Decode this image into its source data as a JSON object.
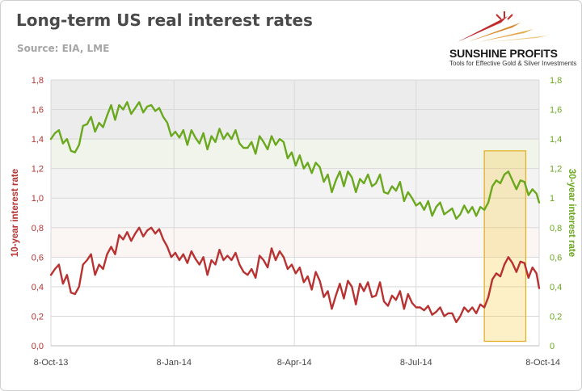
{
  "header": {
    "title": "Long-term US real interest rates",
    "subtitle": "Source: EIA, LME"
  },
  "logo": {
    "brand": "SUNSHINE PROFITS",
    "tagline": "Tools for Effective Gold & Silver Investments"
  },
  "colors": {
    "series_10y": "#b83232",
    "series_30y": "#6aa81e",
    "highlight": "#f7c531"
  },
  "chart_data": {
    "type": "line",
    "title": "Long-term US real interest rates",
    "x_dates": [
      "2013-10-08",
      "2013-10-11",
      "2013-10-14",
      "2013-10-17",
      "2013-10-20",
      "2013-10-23",
      "2013-10-26",
      "2013-10-29",
      "2013-11-01",
      "2013-11-04",
      "2013-11-07",
      "2013-11-10",
      "2013-11-13",
      "2013-11-16",
      "2013-11-19",
      "2013-11-22",
      "2013-11-25",
      "2013-11-28",
      "2013-12-01",
      "2013-12-04",
      "2013-12-07",
      "2013-12-10",
      "2013-12-13",
      "2013-12-16",
      "2013-12-19",
      "2013-12-22",
      "2013-12-25",
      "2013-12-28",
      "2013-12-31",
      "2014-01-03",
      "2014-01-06",
      "2014-01-09",
      "2014-01-12",
      "2014-01-15",
      "2014-01-18",
      "2014-01-21",
      "2014-01-24",
      "2014-01-27",
      "2014-01-30",
      "2014-02-02",
      "2014-02-05",
      "2014-02-08",
      "2014-02-11",
      "2014-02-14",
      "2014-02-17",
      "2014-02-20",
      "2014-02-23",
      "2014-02-26",
      "2014-03-01",
      "2014-03-04",
      "2014-03-07",
      "2014-03-10",
      "2014-03-13",
      "2014-03-16",
      "2014-03-19",
      "2014-03-22",
      "2014-03-25",
      "2014-03-28",
      "2014-03-31",
      "2014-04-03",
      "2014-04-06",
      "2014-04-09",
      "2014-04-12",
      "2014-04-15",
      "2014-04-18",
      "2014-04-21",
      "2014-04-24",
      "2014-04-27",
      "2014-04-30",
      "2014-05-03",
      "2014-05-06",
      "2014-05-09",
      "2014-05-12",
      "2014-05-15",
      "2014-05-18",
      "2014-05-21",
      "2014-05-24",
      "2014-05-27",
      "2014-05-30",
      "2014-06-02",
      "2014-06-05",
      "2014-06-08",
      "2014-06-11",
      "2014-06-14",
      "2014-06-17",
      "2014-06-20",
      "2014-06-23",
      "2014-06-26",
      "2014-06-29",
      "2014-07-02",
      "2014-07-05",
      "2014-07-08",
      "2014-07-11",
      "2014-07-14",
      "2014-07-17",
      "2014-07-20",
      "2014-07-23",
      "2014-07-26",
      "2014-07-29",
      "2014-08-01",
      "2014-08-04",
      "2014-08-07",
      "2014-08-10",
      "2014-08-13",
      "2014-08-16",
      "2014-08-19",
      "2014-08-22",
      "2014-08-25",
      "2014-08-28",
      "2014-08-31",
      "2014-09-03",
      "2014-09-06",
      "2014-09-09",
      "2014-09-12",
      "2014-09-15",
      "2014-09-18",
      "2014-09-21",
      "2014-09-24",
      "2014-09-27",
      "2014-09-30",
      "2014-10-03",
      "2014-10-06",
      "2014-10-08"
    ],
    "series": [
      {
        "name": "10-year interest rate",
        "axis": "left",
        "values": [
          0.48,
          0.52,
          0.55,
          0.42,
          0.48,
          0.36,
          0.35,
          0.4,
          0.55,
          0.58,
          0.62,
          0.48,
          0.55,
          0.52,
          0.62,
          0.67,
          0.62,
          0.75,
          0.72,
          0.77,
          0.71,
          0.76,
          0.8,
          0.74,
          0.78,
          0.8,
          0.76,
          0.79,
          0.72,
          0.67,
          0.6,
          0.63,
          0.58,
          0.62,
          0.56,
          0.64,
          0.59,
          0.55,
          0.6,
          0.48,
          0.58,
          0.55,
          0.65,
          0.58,
          0.61,
          0.58,
          0.63,
          0.55,
          0.5,
          0.48,
          0.52,
          0.46,
          0.61,
          0.58,
          0.53,
          0.66,
          0.58,
          0.64,
          0.6,
          0.52,
          0.55,
          0.49,
          0.53,
          0.43,
          0.47,
          0.38,
          0.5,
          0.44,
          0.33,
          0.37,
          0.25,
          0.34,
          0.42,
          0.32,
          0.44,
          0.4,
          0.28,
          0.42,
          0.37,
          0.43,
          0.33,
          0.34,
          0.43,
          0.3,
          0.27,
          0.34,
          0.31,
          0.37,
          0.25,
          0.35,
          0.29,
          0.26,
          0.26,
          0.24,
          0.27,
          0.21,
          0.23,
          0.26,
          0.2,
          0.22,
          0.22,
          0.16,
          0.2,
          0.26,
          0.23,
          0.26,
          0.22,
          0.28,
          0.26,
          0.33,
          0.45,
          0.49,
          0.47,
          0.55,
          0.6,
          0.56,
          0.5,
          0.57,
          0.56,
          0.46,
          0.53,
          0.49,
          0.39
        ]
      },
      {
        "name": "30-year interest rate",
        "axis": "right",
        "values": [
          1.4,
          1.44,
          1.46,
          1.37,
          1.4,
          1.32,
          1.31,
          1.36,
          1.49,
          1.5,
          1.55,
          1.45,
          1.51,
          1.48,
          1.56,
          1.63,
          1.53,
          1.63,
          1.6,
          1.65,
          1.57,
          1.61,
          1.65,
          1.58,
          1.62,
          1.63,
          1.59,
          1.61,
          1.55,
          1.51,
          1.42,
          1.45,
          1.41,
          1.46,
          1.36,
          1.46,
          1.41,
          1.37,
          1.44,
          1.33,
          1.42,
          1.38,
          1.47,
          1.4,
          1.44,
          1.4,
          1.46,
          1.37,
          1.34,
          1.34,
          1.38,
          1.3,
          1.42,
          1.38,
          1.33,
          1.42,
          1.36,
          1.4,
          1.38,
          1.27,
          1.31,
          1.22,
          1.29,
          1.2,
          1.24,
          1.17,
          1.24,
          1.21,
          1.11,
          1.16,
          1.04,
          1.12,
          1.18,
          1.08,
          1.18,
          1.14,
          1.04,
          1.13,
          1.1,
          1.16,
          1.08,
          1.1,
          1.16,
          1.04,
          1.03,
          1.08,
          1.05,
          1.11,
          0.98,
          1.04,
          1.0,
          0.95,
          0.97,
          0.92,
          0.98,
          0.88,
          0.94,
          0.97,
          0.89,
          0.91,
          0.93,
          0.86,
          0.89,
          0.95,
          0.9,
          0.94,
          0.88,
          0.94,
          0.92,
          0.97,
          1.08,
          1.12,
          1.1,
          1.16,
          1.18,
          1.12,
          1.06,
          1.12,
          1.11,
          1.02,
          1.06,
          1.03,
          0.97
        ]
      }
    ],
    "x_ticks": [
      "8-Oct-13",
      "8-Jan-14",
      "8-Apr-14",
      "8-Jul-14",
      "8-Oct-14"
    ],
    "x_tick_dates": [
      "2013-10-08",
      "2014-01-08",
      "2014-04-08",
      "2014-07-08",
      "2014-10-08"
    ],
    "y_left": {
      "label": "10-year interest rate",
      "ticks": [
        "0,0",
        "0,2",
        "0,4",
        "0,6",
        "0,8",
        "1,0",
        "1,2",
        "1,4",
        "1,6",
        "1,8"
      ],
      "range": [
        0,
        1.8
      ]
    },
    "y_right": {
      "label": "30-year interest rate",
      "ticks": [
        "0",
        "0,2",
        "0,4",
        "0,6",
        "0,8",
        "1",
        "1,2",
        "1,4",
        "1,6",
        "1,8"
      ],
      "range": [
        0,
        1.8
      ]
    },
    "highlight": {
      "x_start": "2014-08-28",
      "x_end": "2014-09-28",
      "y_start": 0.03,
      "y_end": 1.32
    },
    "grid": true,
    "vertical_grid": true
  }
}
